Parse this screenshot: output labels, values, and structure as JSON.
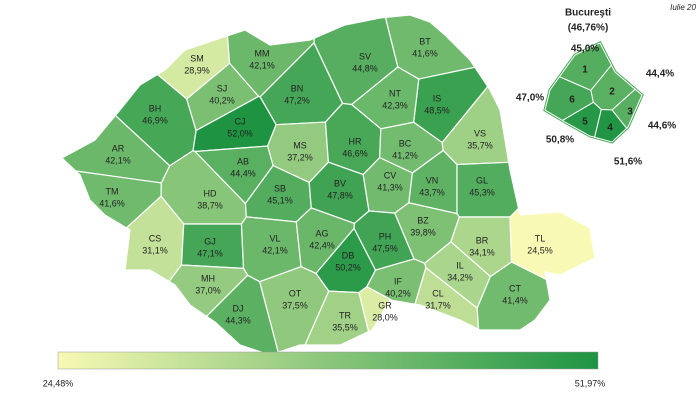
{
  "date_label": "Iulie 20",
  "counties": {
    "codes": [
      "SM",
      "MM",
      "SV",
      "BT",
      "IS",
      "BH",
      "SJ",
      "BN",
      "NT",
      "CJ",
      "MS",
      "HR",
      "BC",
      "VS",
      "AR",
      "AB",
      "TM",
      "HD",
      "SB",
      "BV",
      "CV",
      "VN",
      "GL",
      "CS",
      "GJ",
      "VL",
      "AG",
      "DB",
      "PH",
      "BZ",
      "BR",
      "TL",
      "MH",
      "DJ",
      "OT",
      "TR",
      "GR",
      "IF",
      "IL",
      "CL",
      "CT"
    ],
    "values": [
      28.9,
      42.1,
      44.8,
      41.6,
      48.5,
      46.9,
      40.2,
      47.2,
      42.3,
      52.0,
      37.2,
      46.6,
      41.2,
      35.7,
      42.1,
      44.4,
      41.6,
      38.7,
      45.1,
      47.8,
      41.3,
      43.7,
      45.3,
      31.1,
      47.1,
      42.1,
      42.4,
      50.2,
      47.5,
      39.8,
      34.1,
      24.5,
      37.0,
      44.3,
      37.5,
      35.5,
      28.0,
      40.2,
      34.2,
      31.7,
      41.4
    ],
    "value_labels": [
      "28,9%",
      "42,1%",
      "44,8%",
      "41,6%",
      "48,5%",
      "46,9%",
      "40,2%",
      "47,2%",
      "42,3%",
      "52,0%",
      "37,2%",
      "46,6%",
      "41,2%",
      "35,7%",
      "42,1%",
      "44,4%",
      "41,6%",
      "38,7%",
      "45,1%",
      "47,8%",
      "41,3%",
      "43,7%",
      "45,3%",
      "31,1%",
      "47,1%",
      "42,1%",
      "42,4%",
      "50,2%",
      "47,5%",
      "39,8%",
      "34,1%",
      "24,5%",
      "37,0%",
      "44,3%",
      "37,5%",
      "35,5%",
      "28,0%",
      "40,2%",
      "34,2%",
      "31,7%",
      "41,4%"
    ]
  },
  "bucuresti": {
    "title": "Bucureşti",
    "total": {
      "value": 46.76,
      "label": "(46,76%)"
    },
    "sectors": [
      "1",
      "2",
      "3",
      "4",
      "5",
      "6"
    ],
    "values": [
      45.0,
      44.4,
      44.6,
      51.6,
      50.8,
      47.0
    ],
    "value_labels": [
      "45,0%",
      "44,4%",
      "44,6%",
      "51,6%",
      "50,8%",
      "47,0%"
    ]
  },
  "scale": {
    "min": {
      "value": 24.48,
      "label": "24,48%"
    },
    "max": {
      "value": 51.97,
      "label": "51,97%"
    },
    "colors": [
      "#f7f9b4",
      "#1e9442"
    ]
  }
}
